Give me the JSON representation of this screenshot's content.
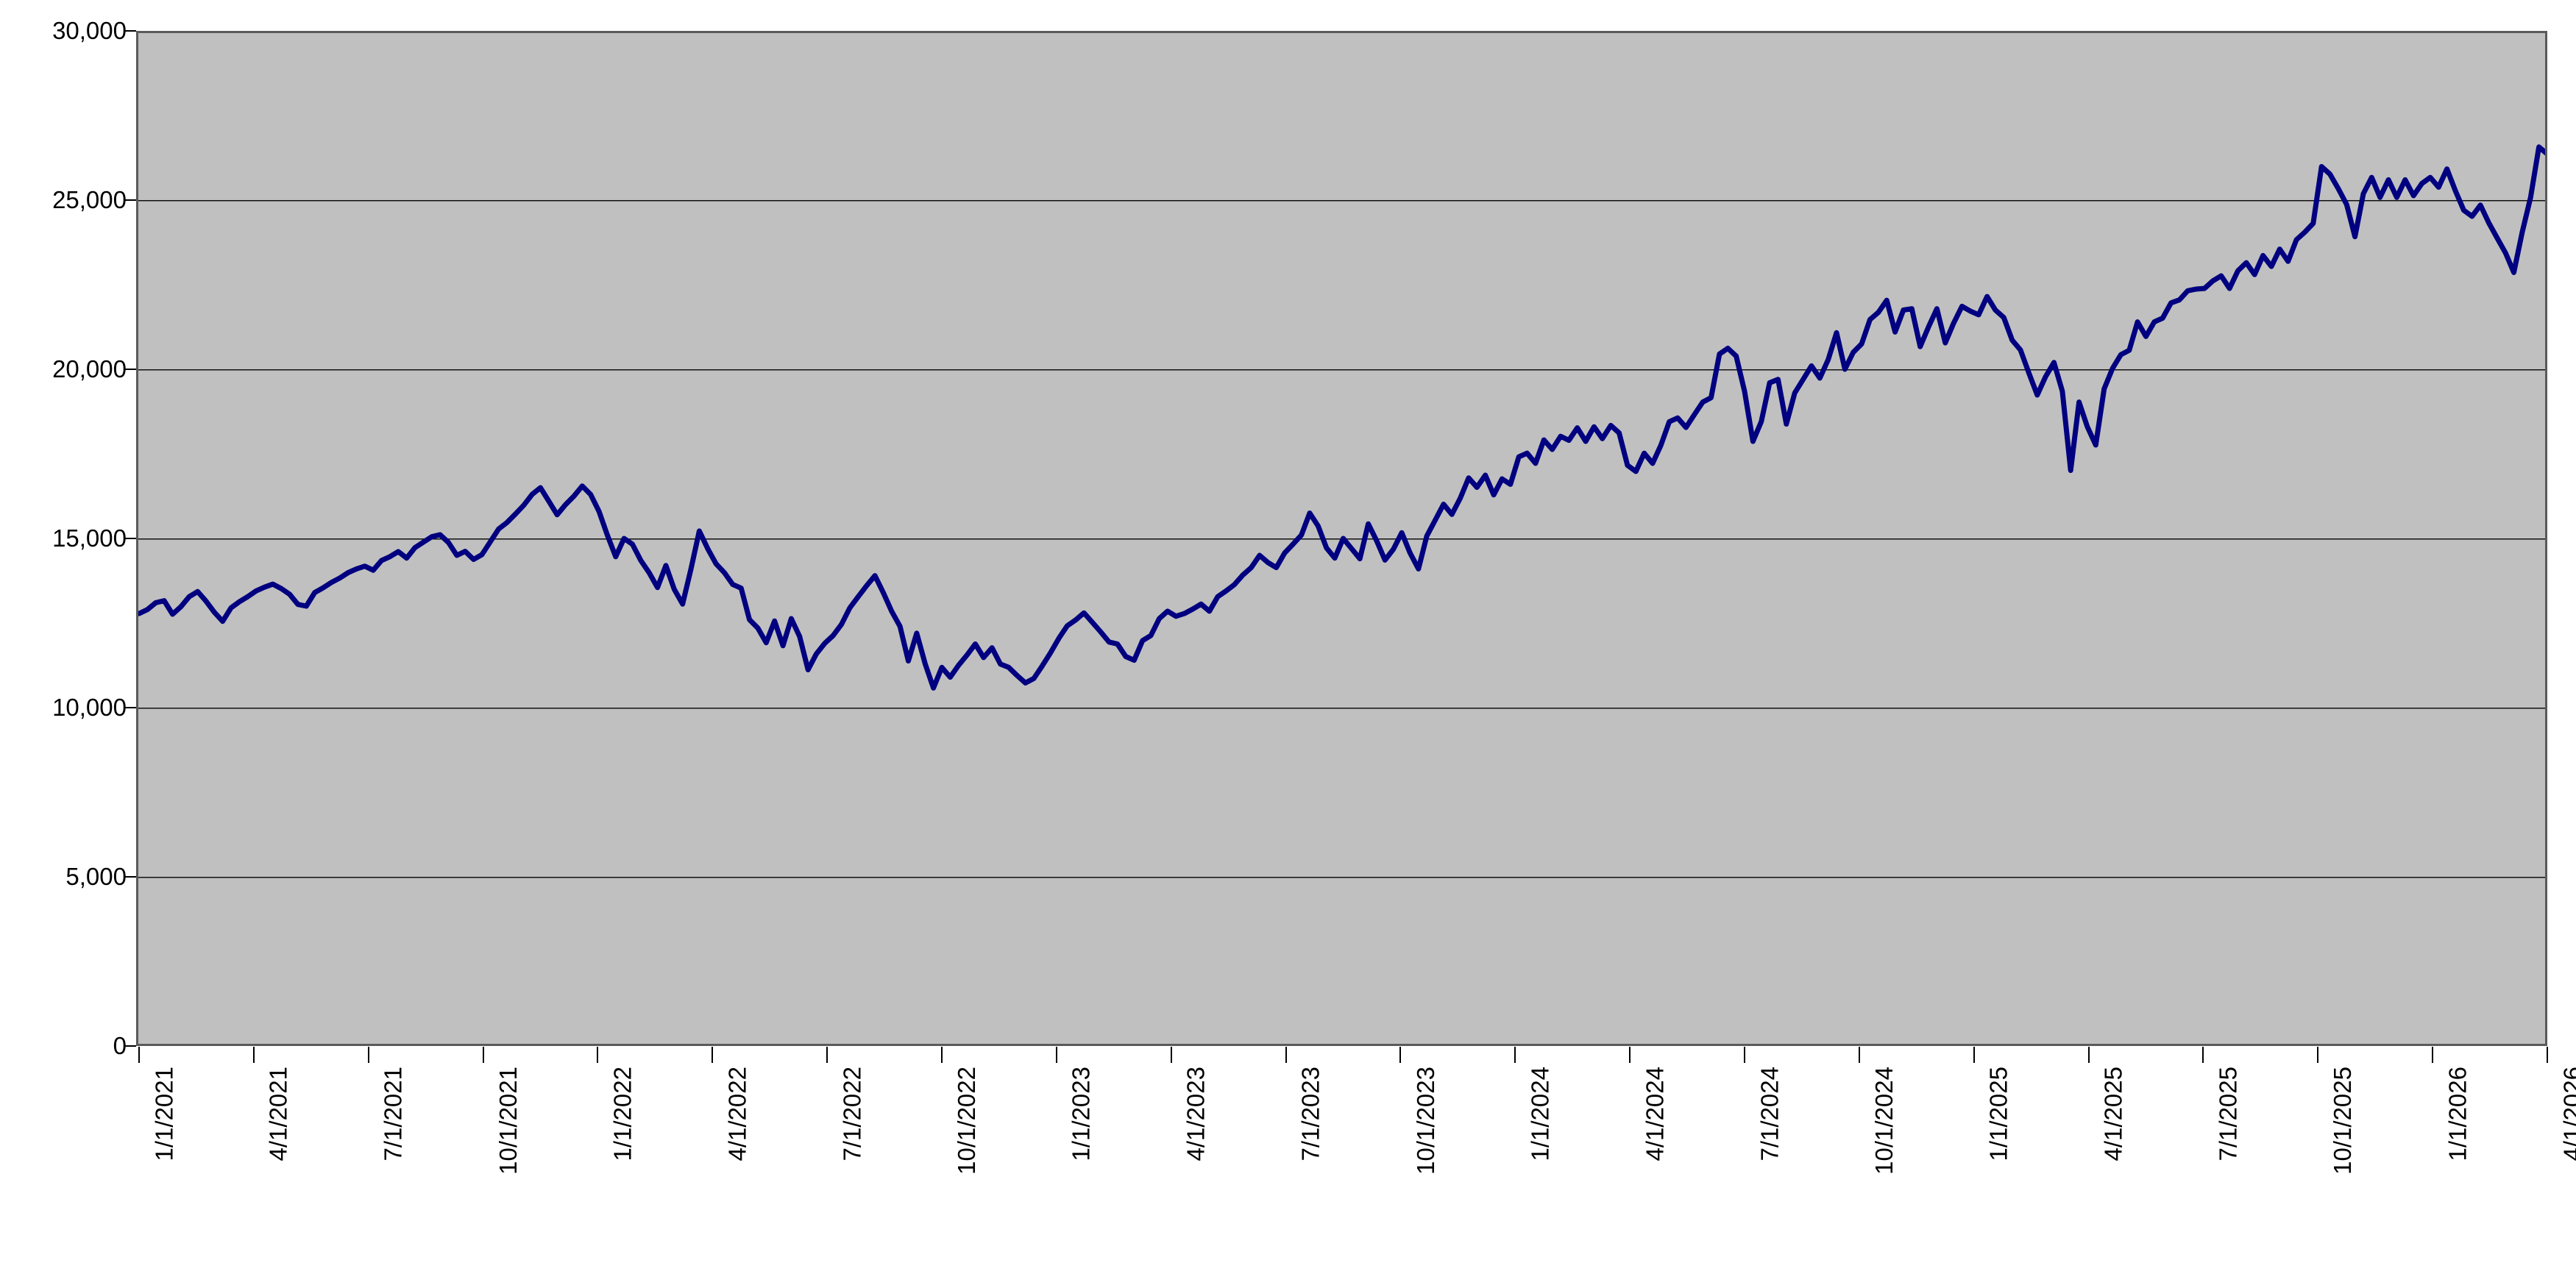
{
  "chart_data": {
    "type": "line",
    "title": "",
    "legend": "none",
    "grid": true,
    "plot_bg_color": "#c0c0c0",
    "outer_bg_color": "#ffffff",
    "border_color": "#5a5a5a",
    "gridline_color": "#111111",
    "line_color": "#000080",
    "ylabel": "",
    "xlabel": "",
    "ylim": [
      0,
      30000
    ],
    "y_tick_labels": [
      "30,000",
      "25,000",
      "20,000",
      "15,000",
      "10,000",
      "5,000",
      "0"
    ],
    "x_tick_labels": [
      "1/1/2021",
      "4/1/2021",
      "7/1/2021",
      "10/1/2021",
      "1/1/2022",
      "4/1/2022",
      "7/1/2022",
      "10/1/2022",
      "1/1/2023",
      "4/1/2023",
      "7/1/2023",
      "10/1/2023",
      "1/1/2024",
      "4/1/2024",
      "7/1/2024",
      "10/1/2024",
      "1/1/2025",
      "4/1/2025",
      "7/1/2025",
      "10/1/2025",
      "1/1/2026",
      "4/1/2026"
    ],
    "x_start": "1/1/2021",
    "x_end": "4/1/2026",
    "values": [
      12780,
      12900,
      13100,
      13160,
      12760,
      12980,
      13280,
      13430,
      13150,
      12820,
      12550,
      12950,
      13130,
      13280,
      13450,
      13560,
      13650,
      13520,
      13350,
      13050,
      13000,
      13400,
      13540,
      13700,
      13830,
      13990,
      14100,
      14180,
      14060,
      14350,
      14460,
      14610,
      14420,
      14730,
      14890,
      15050,
      15110,
      14880,
      14500,
      14620,
      14380,
      14520,
      14900,
      15280,
      15470,
      15720,
      15980,
      16300,
      16500,
      16100,
      15700,
      16000,
      16250,
      16550,
      16300,
      15800,
      15100,
      14460,
      15000,
      14830,
      14350,
      13990,
      13550,
      14200,
      13500,
      13060,
      14100,
      15220,
      14700,
      14250,
      13990,
      13640,
      13530,
      12600,
      12350,
      11920,
      12560,
      11830,
      12630,
      12100,
      11120,
      11590,
      11900,
      12130,
      12460,
      12950,
      13280,
      13600,
      13900,
      13400,
      12850,
      12400,
      11380,
      12200,
      11300,
      10580,
      11190,
      10900,
      11250,
      11550,
      11880,
      11480,
      11770,
      11290,
      11190,
      10950,
      10730,
      10860,
      11230,
      11620,
      12050,
      12420,
      12590,
      12800,
      12520,
      12240,
      11940,
      11880,
      11510,
      11400,
      11980,
      12130,
      12630,
      12850,
      12700,
      12780,
      12910,
      13060,
      12850,
      13280,
      13450,
      13640,
      13920,
      14140,
      14500,
      14290,
      14140,
      14570,
      14830,
      15100,
      15750,
      15370,
      14720,
      14420,
      15000,
      14700,
      14400,
      15430,
      14930,
      14360,
      14680,
      15170,
      14570,
      14100,
      15070,
      15540,
      16010,
      15710,
      16190,
      16790,
      16510,
      16870,
      16290,
      16760,
      16600,
      17410,
      17520,
      17220,
      17910,
      17630,
      18020,
      17900,
      18270,
      17870,
      18300,
      17950,
      18340,
      18120,
      17160,
      16980,
      17520,
      17220,
      17760,
      18450,
      18560,
      18280,
      18660,
      19030,
      19160,
      20450,
      20620,
      20390,
      19350,
      17870,
      18450,
      19600,
      19700,
      18380,
      19300,
      19700,
      20100,
      19740,
      20280,
      21080,
      20000,
      20500,
      20750,
      21470,
      21680,
      22040,
      21100,
      21750,
      21790,
      20670,
      21250,
      21790,
      20780,
      21360,
      21860,
      21720,
      21610,
      22150,
      21750,
      21530,
      20860,
      20570,
      19890,
      19240,
      19780,
      20200,
      19350,
      17010,
      19030,
      18300,
      17760,
      19420,
      20020,
      20430,
      20560,
      21400,
      20970,
      21400,
      21510,
      21960,
      22050,
      22320,
      22370,
      22390,
      22610,
      22760,
      22390,
      22910,
      23150,
      22800,
      23360,
      23040,
      23550,
      23190,
      23830,
      24050,
      24310,
      25990,
      25770,
      25340,
      24870,
      23920,
      25190,
      25670,
      25080,
      25600,
      25080,
      25600,
      25130,
      25490,
      25670,
      25380,
      25920,
      25280,
      24700,
      24520,
      24850,
      24330,
      23880,
      23440,
      22860,
      24050,
      25080,
      26570,
      26360
    ]
  }
}
